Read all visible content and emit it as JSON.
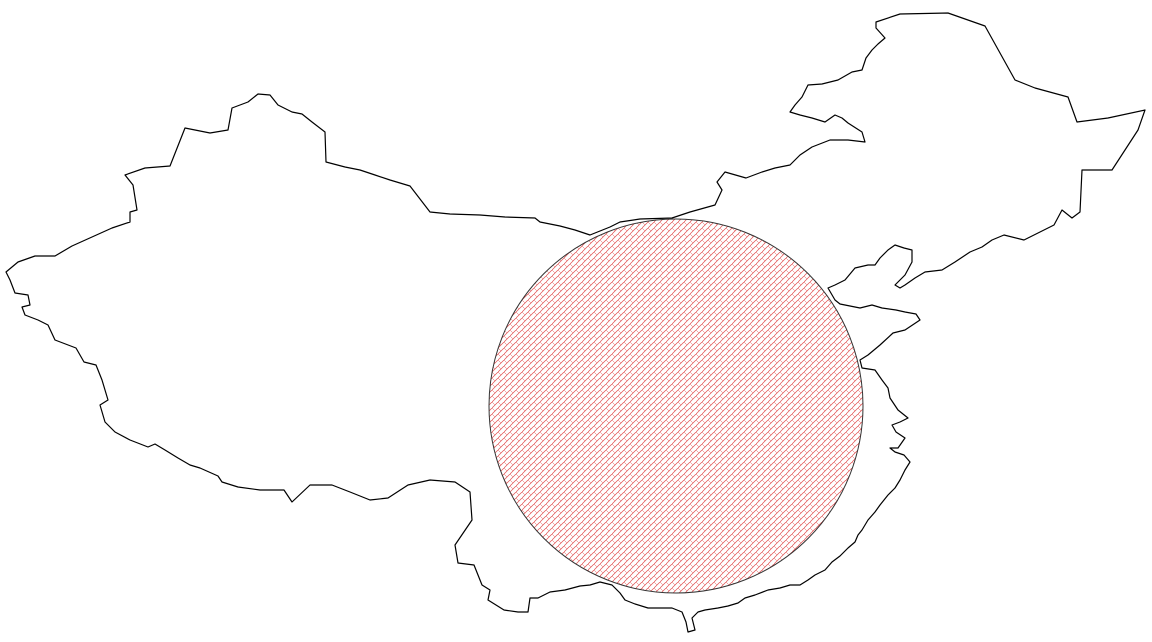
{
  "map": {
    "background_color": "#ffffff",
    "outline_color": "#000000",
    "overlay": {
      "shape": "circle",
      "fill_pattern": "diagonal-hatch",
      "hatch_color": "#e05050",
      "edge_color": "#333333"
    }
  }
}
